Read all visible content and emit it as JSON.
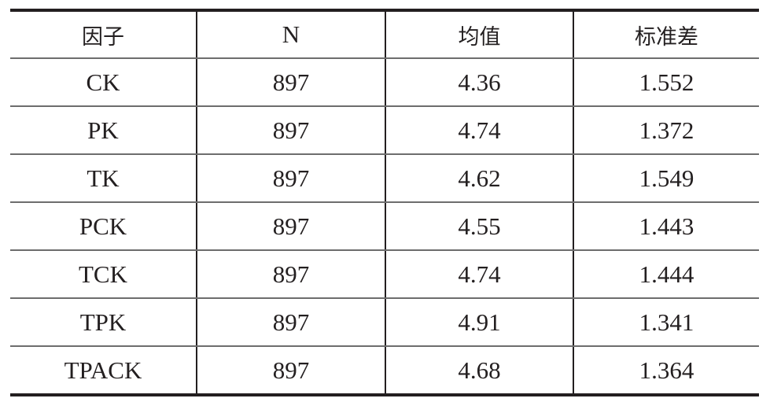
{
  "table": {
    "headers": [
      "因子",
      "N",
      "均值",
      "标准差"
    ],
    "rows": [
      [
        "CK",
        "897",
        "4.36",
        "1.552"
      ],
      [
        "PK",
        "897",
        "4.74",
        "1.372"
      ],
      [
        "TK",
        "897",
        "4.62",
        "1.549"
      ],
      [
        "PCK",
        "897",
        "4.55",
        "1.443"
      ],
      [
        "TCK",
        "897",
        "4.74",
        "1.444"
      ],
      [
        "TPK",
        "897",
        "4.91",
        "1.341"
      ],
      [
        "TPACK",
        "897",
        "4.68",
        "1.364"
      ]
    ]
  }
}
